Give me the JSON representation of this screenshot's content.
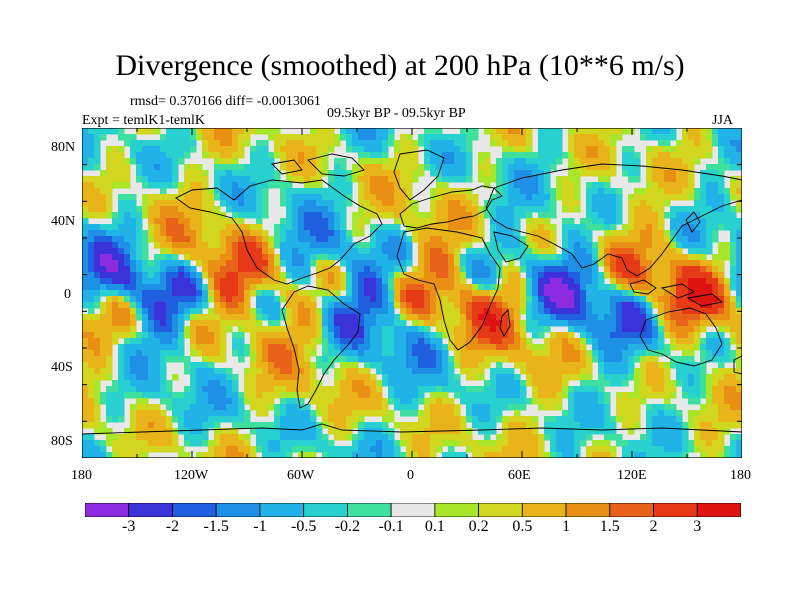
{
  "title": "Divergence (smoothed) at 200 hPa (10**6 m/s)",
  "stats": "rmsd= 0.370166 diff= -0.0013061",
  "experiment": "Expt = temlK1-temlK",
  "period": "09.5kyr BP - 09.5kyr BP",
  "season": "JJA",
  "chart_data": {
    "type": "heatmap",
    "title": "Divergence (smoothed) at 200 hPa (10**6 m/s)",
    "variable": "Divergence (smoothed), 200 hPa",
    "units": "10**6 m/s",
    "x_range": [
      -180,
      180
    ],
    "y_range": [
      -90,
      90
    ],
    "lon_ticks": [
      "180",
      "120W",
      "60W",
      "0",
      "60E",
      "120E",
      "180"
    ],
    "lat_ticks": [
      "80N",
      "40N",
      "0",
      "40S",
      "80S"
    ],
    "contour_levels": [
      "-3",
      "-2",
      "-1.5",
      "-1",
      "-0.5",
      "-0.2",
      "-0.1",
      "0.1",
      "0.2",
      "0.5",
      "1",
      "1.5",
      "2",
      "3"
    ],
    "colors": [
      "#8c2be0",
      "#3b33d9",
      "#1f5fe0",
      "#1e90e6",
      "#21b3e8",
      "#29d0d0",
      "#3ee0a0",
      "#e8e8e8",
      "#a8e62a",
      "#d2d61f",
      "#e8b419",
      "#e88f14",
      "#e8621a",
      "#e63a17",
      "#e01313"
    ]
  }
}
